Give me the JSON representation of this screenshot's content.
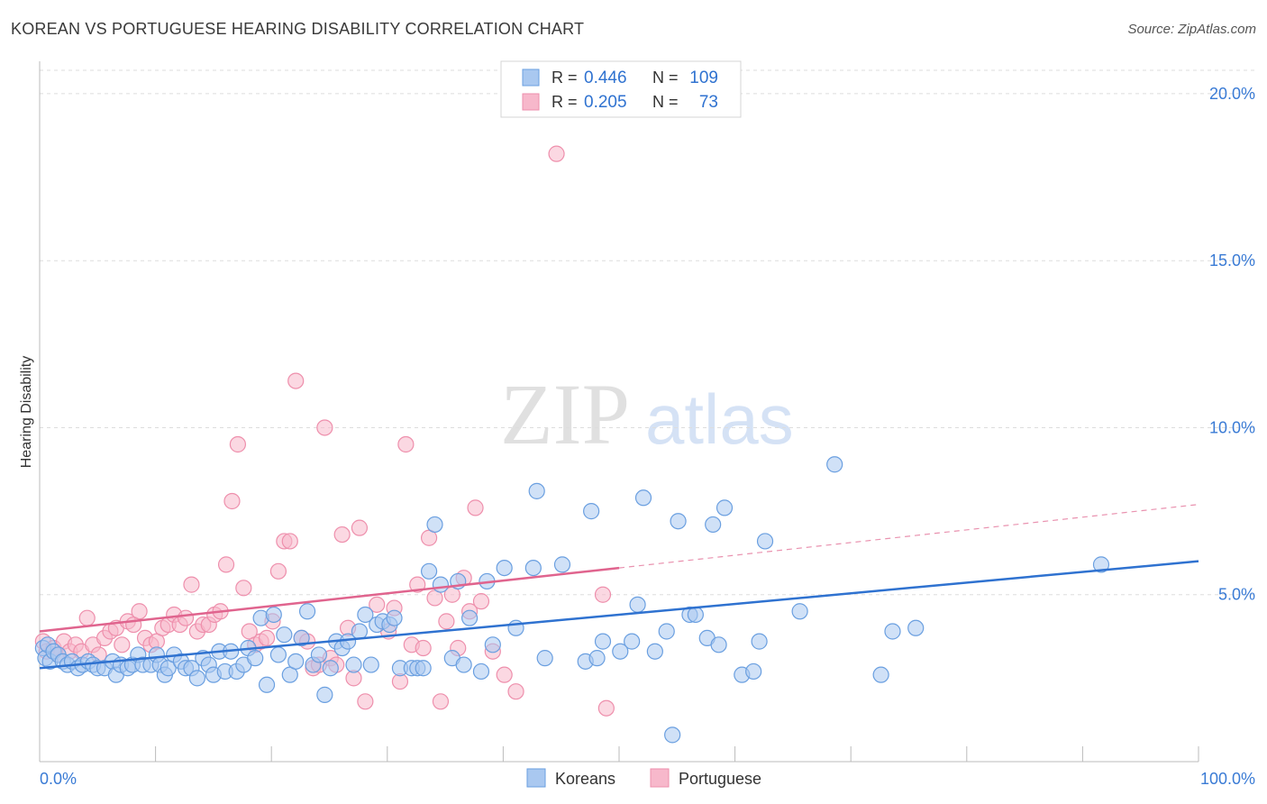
{
  "title": "KOREAN VS PORTUGUESE HEARING DISABILITY CORRELATION CHART",
  "source": "Source: ZipAtlas.com",
  "watermark": {
    "zip": "ZIP",
    "atlas": "atlas"
  },
  "legend": {
    "rows": [
      {
        "r_label": "R =",
        "r_value": "0.446",
        "n_label": "N =",
        "n_value": "109",
        "color": "#a9c8f0"
      },
      {
        "r_label": "R =",
        "r_value": "0.205",
        "n_label": "N =",
        "n_value": "73",
        "color": "#f7b8cb"
      }
    ]
  },
  "bottom_legend": [
    {
      "label": "Koreans",
      "color": "#a9c8f0"
    },
    {
      "label": "Portuguese",
      "color": "#f7b8cb"
    }
  ],
  "colors": {
    "korean_fill": "#a9c8f0",
    "korean_stroke": "#6a9fe0",
    "korean_line": "#2f72d0",
    "portuguese_fill": "#f7b8cb",
    "portuguese_stroke": "#ee8fac",
    "portuguese_line": "#e0648e",
    "axis_text": "#3a7bd5",
    "grid": "#dddddd"
  },
  "chart_data": {
    "type": "scatter",
    "title": "KOREAN VS PORTUGUESE HEARING DISABILITY CORRELATION CHART",
    "xlabel": "",
    "ylabel": "Hearing Disability",
    "xlim": [
      0,
      100
    ],
    "ylim": [
      0,
      20.7
    ],
    "x_tick_labels": [
      "0.0%",
      "100.0%"
    ],
    "y_ticks": [
      5,
      10,
      15,
      20
    ],
    "y_tick_labels": [
      "5.0%",
      "10.0%",
      "15.0%",
      "20.0%"
    ],
    "grid": "horizontal dashed",
    "series": [
      {
        "name": "Koreans",
        "r": 0.446,
        "n": 109,
        "trend": {
          "x": [
            0,
            100
          ],
          "y": [
            2.8,
            6.0
          ]
        },
        "points": [
          [
            0.3,
            3.4
          ],
          [
            0.5,
            3.1
          ],
          [
            0.7,
            3.5
          ],
          [
            0.9,
            3.0
          ],
          [
            1.2,
            3.3
          ],
          [
            1.6,
            3.2
          ],
          [
            2.0,
            3.0
          ],
          [
            2.4,
            2.9
          ],
          [
            2.8,
            3.0
          ],
          [
            3.3,
            2.8
          ],
          [
            3.7,
            2.9
          ],
          [
            4.2,
            3.0
          ],
          [
            4.6,
            2.9
          ],
          [
            5.0,
            2.8
          ],
          [
            5.6,
            2.8
          ],
          [
            6.3,
            3.0
          ],
          [
            6.6,
            2.6
          ],
          [
            7.0,
            2.9
          ],
          [
            7.6,
            2.8
          ],
          [
            8.0,
            2.9
          ],
          [
            8.5,
            3.2
          ],
          [
            8.9,
            2.9
          ],
          [
            9.6,
            2.9
          ],
          [
            10.1,
            3.2
          ],
          [
            10.4,
            2.9
          ],
          [
            10.8,
            2.6
          ],
          [
            11.1,
            2.8
          ],
          [
            11.6,
            3.2
          ],
          [
            12.2,
            3.0
          ],
          [
            12.6,
            2.8
          ],
          [
            13.1,
            2.8
          ],
          [
            13.6,
            2.5
          ],
          [
            14.1,
            3.1
          ],
          [
            14.6,
            2.9
          ],
          [
            15.0,
            2.6
          ],
          [
            15.5,
            3.3
          ],
          [
            16.0,
            2.7
          ],
          [
            16.5,
            3.3
          ],
          [
            17.0,
            2.7
          ],
          [
            17.6,
            2.9
          ],
          [
            18.0,
            3.4
          ],
          [
            18.6,
            3.1
          ],
          [
            19.1,
            4.3
          ],
          [
            19.6,
            2.3
          ],
          [
            20.2,
            4.4
          ],
          [
            20.6,
            3.2
          ],
          [
            21.1,
            3.8
          ],
          [
            21.6,
            2.6
          ],
          [
            22.1,
            3.0
          ],
          [
            22.6,
            3.7
          ],
          [
            23.1,
            4.5
          ],
          [
            23.6,
            2.9
          ],
          [
            24.1,
            3.2
          ],
          [
            24.6,
            2.0
          ],
          [
            25.1,
            2.8
          ],
          [
            25.6,
            3.6
          ],
          [
            26.1,
            3.4
          ],
          [
            26.6,
            3.6
          ],
          [
            27.1,
            2.9
          ],
          [
            27.6,
            3.9
          ],
          [
            28.1,
            4.4
          ],
          [
            28.6,
            2.9
          ],
          [
            29.1,
            4.1
          ],
          [
            29.6,
            4.2
          ],
          [
            30.2,
            4.1
          ],
          [
            30.6,
            4.3
          ],
          [
            31.1,
            2.8
          ],
          [
            32.1,
            2.8
          ],
          [
            32.6,
            2.8
          ],
          [
            33.1,
            2.8
          ],
          [
            33.6,
            5.7
          ],
          [
            34.1,
            7.1
          ],
          [
            34.6,
            5.3
          ],
          [
            35.6,
            3.1
          ],
          [
            36.1,
            5.4
          ],
          [
            36.6,
            2.9
          ],
          [
            37.1,
            4.3
          ],
          [
            38.1,
            2.7
          ],
          [
            38.6,
            5.4
          ],
          [
            39.1,
            3.5
          ],
          [
            40.1,
            5.8
          ],
          [
            41.1,
            4.0
          ],
          [
            42.6,
            5.8
          ],
          [
            42.9,
            8.1
          ],
          [
            43.6,
            3.1
          ],
          [
            45.1,
            5.9
          ],
          [
            47.1,
            3.0
          ],
          [
            47.6,
            7.5
          ],
          [
            48.1,
            3.1
          ],
          [
            48.6,
            3.6
          ],
          [
            50.1,
            3.3
          ],
          [
            51.1,
            3.6
          ],
          [
            51.6,
            4.7
          ],
          [
            52.1,
            7.9
          ],
          [
            53.1,
            3.3
          ],
          [
            54.1,
            3.9
          ],
          [
            55.1,
            7.2
          ],
          [
            56.1,
            4.4
          ],
          [
            56.6,
            4.4
          ],
          [
            57.6,
            3.7
          ],
          [
            58.1,
            7.1
          ],
          [
            58.6,
            3.5
          ],
          [
            59.1,
            7.6
          ],
          [
            60.6,
            2.6
          ],
          [
            61.6,
            2.7
          ],
          [
            62.1,
            3.6
          ],
          [
            62.6,
            6.6
          ],
          [
            65.6,
            4.5
          ],
          [
            72.6,
            2.6
          ],
          [
            73.6,
            3.9
          ],
          [
            75.6,
            4.0
          ],
          [
            91.6,
            5.9
          ],
          [
            68.6,
            8.9
          ],
          [
            54.6,
            0.8
          ]
        ]
      },
      {
        "name": "Portuguese",
        "r": 0.205,
        "n": 73,
        "trend": {
          "x": [
            0,
            50
          ],
          "y": [
            3.9,
            5.8
          ]
        },
        "trend_extension": {
          "x": [
            50,
            100
          ],
          "y": [
            5.8,
            7.7
          ]
        },
        "points": [
          [
            0.3,
            3.6
          ],
          [
            0.6,
            3.3
          ],
          [
            1.2,
            3.4
          ],
          [
            1.6,
            3.2
          ],
          [
            2.1,
            3.6
          ],
          [
            2.6,
            3.3
          ],
          [
            3.1,
            3.5
          ],
          [
            3.6,
            3.3
          ],
          [
            4.1,
            4.3
          ],
          [
            4.6,
            3.5
          ],
          [
            5.1,
            3.2
          ],
          [
            5.6,
            3.7
          ],
          [
            6.1,
            3.9
          ],
          [
            6.6,
            4.0
          ],
          [
            7.1,
            3.5
          ],
          [
            7.6,
            4.2
          ],
          [
            8.1,
            4.1
          ],
          [
            8.6,
            4.5
          ],
          [
            9.1,
            3.7
          ],
          [
            9.6,
            3.5
          ],
          [
            10.1,
            3.6
          ],
          [
            10.6,
            4.0
          ],
          [
            11.1,
            4.1
          ],
          [
            11.6,
            4.4
          ],
          [
            12.1,
            4.1
          ],
          [
            12.6,
            4.3
          ],
          [
            13.1,
            5.3
          ],
          [
            13.6,
            3.9
          ],
          [
            14.1,
            4.1
          ],
          [
            14.6,
            4.1
          ],
          [
            15.1,
            4.4
          ],
          [
            15.6,
            4.5
          ],
          [
            16.1,
            5.9
          ],
          [
            16.6,
            7.8
          ],
          [
            17.1,
            9.5
          ],
          [
            17.6,
            5.2
          ],
          [
            18.1,
            3.9
          ],
          [
            18.6,
            3.5
          ],
          [
            19.1,
            3.6
          ],
          [
            19.6,
            3.7
          ],
          [
            20.1,
            4.2
          ],
          [
            20.6,
            5.7
          ],
          [
            21.1,
            6.6
          ],
          [
            21.6,
            6.6
          ],
          [
            22.1,
            11.4
          ],
          [
            22.6,
            3.7
          ],
          [
            23.1,
            3.6
          ],
          [
            23.6,
            2.8
          ],
          [
            24.1,
            2.9
          ],
          [
            24.6,
            10.0
          ],
          [
            25.1,
            3.1
          ],
          [
            25.6,
            2.9
          ],
          [
            26.1,
            6.8
          ],
          [
            26.6,
            4.0
          ],
          [
            27.1,
            2.5
          ],
          [
            27.6,
            7.0
          ],
          [
            28.1,
            1.8
          ],
          [
            29.1,
            4.7
          ],
          [
            30.1,
            3.9
          ],
          [
            30.6,
            4.6
          ],
          [
            31.1,
            2.4
          ],
          [
            31.6,
            9.5
          ],
          [
            32.1,
            3.5
          ],
          [
            32.6,
            5.3
          ],
          [
            33.1,
            3.4
          ],
          [
            33.6,
            6.7
          ],
          [
            34.1,
            4.9
          ],
          [
            34.6,
            1.8
          ],
          [
            35.1,
            4.2
          ],
          [
            35.6,
            5.0
          ],
          [
            36.1,
            3.4
          ],
          [
            36.6,
            5.5
          ],
          [
            37.1,
            4.5
          ],
          [
            37.6,
            7.6
          ],
          [
            38.1,
            4.8
          ],
          [
            39.1,
            3.3
          ],
          [
            40.1,
            2.6
          ],
          [
            41.1,
            2.1
          ],
          [
            44.6,
            18.2
          ],
          [
            48.6,
            5.0
          ],
          [
            48.9,
            1.6
          ]
        ]
      }
    ]
  }
}
